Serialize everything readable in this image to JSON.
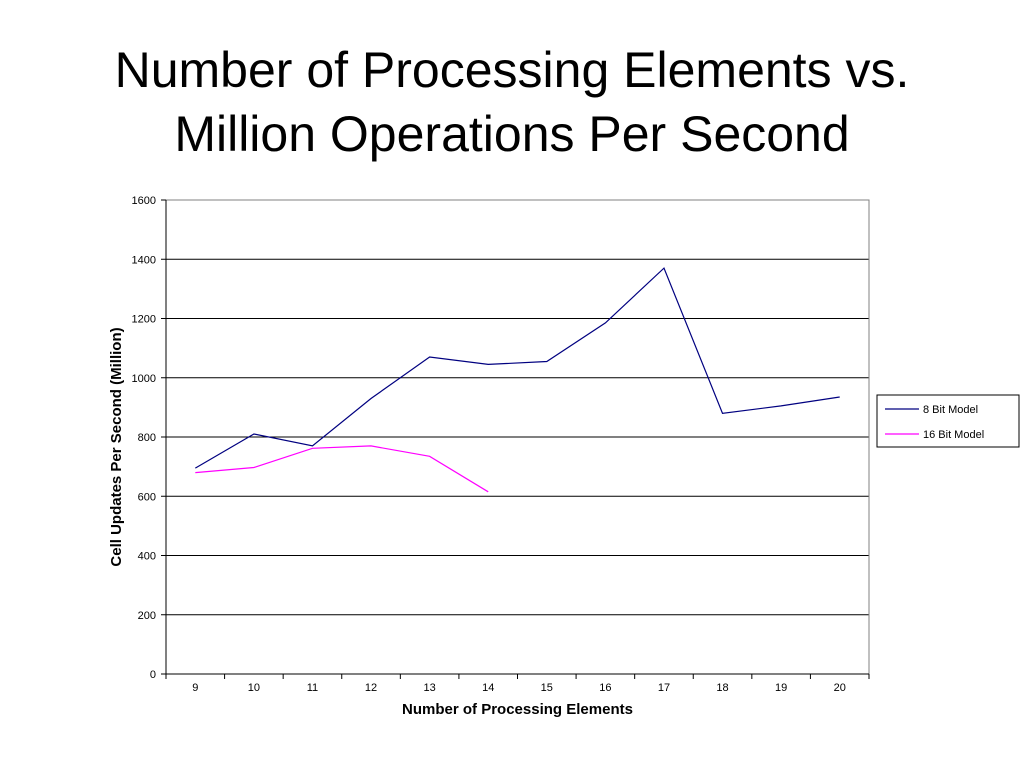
{
  "slide": {
    "title_line1": "Number of Processing Elements vs.",
    "title_line2": "Million Operations Per Second"
  },
  "chart_data": {
    "type": "line",
    "xlabel": "Number of Processing Elements",
    "ylabel": "Cell Updates Per Second (Million)",
    "x": [
      9,
      10,
      11,
      12,
      13,
      14,
      15,
      16,
      17,
      18,
      19,
      20
    ],
    "ylim": [
      0,
      1600
    ],
    "yticks": [
      0,
      200,
      400,
      600,
      800,
      1000,
      1200,
      1400,
      1600
    ],
    "grid": true,
    "legend_position": "right",
    "series": [
      {
        "name": "8 Bit Model",
        "color": "#000080",
        "values": [
          695,
          810,
          770,
          930,
          1070,
          1045,
          1055,
          1185,
          1370,
          880,
          905,
          935
        ]
      },
      {
        "name": "16 Bit Model",
        "color": "#ff00ff",
        "values": [
          680,
          697,
          762,
          770,
          735,
          615,
          null,
          null,
          null,
          null,
          null,
          null
        ]
      }
    ]
  }
}
